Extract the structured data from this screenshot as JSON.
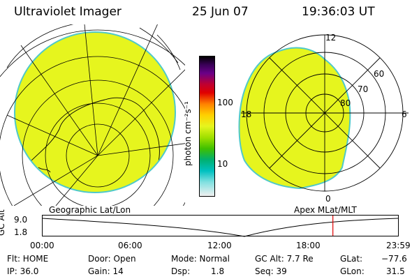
{
  "header": {
    "title": "Ultraviolet Imager",
    "date": "25 Jun 07",
    "time": "19:36:03 UT"
  },
  "colorbar": {
    "unit_label": "photon cm⁻²s⁻¹",
    "tick_100": "100",
    "tick_10": "10"
  },
  "left_map": {
    "label": "Geographic Lat/Lon"
  },
  "right_map": {
    "label": "Apex MLat/MLT",
    "mlt_12": "12",
    "mlt_18": "18",
    "mlt_6": "6",
    "mlt_0": "0",
    "lat_60": "60",
    "lat_70": "70",
    "lat_80": "80"
  },
  "timeline": {
    "axis_label": "GC Alt",
    "y_top": "9.0",
    "y_bottom": "1.8",
    "ticks": [
      "00:00",
      "06:00",
      "12:00",
      "18:00",
      "23:59"
    ],
    "marker_hours": 19.6,
    "marker_color": "#e00000"
  },
  "status": {
    "flt": "Flt: HOME",
    "ip": "IP: 36.0",
    "door": "Door: Open",
    "gain": "Gain: 14",
    "mode": "Mode: Normal",
    "dsp_label": "Dsp:",
    "dsp_value": "1.8",
    "gcalt": "GC Alt: 7.7 Re",
    "seq": "Seq: 39",
    "glat_label": "GLat:",
    "glat_value": "−77.6",
    "glon_label": "GLon:",
    "glon_value": "31.5"
  },
  "colors": {
    "aurora_fill": "#e6f51e",
    "edge": "#4fc9c9"
  }
}
